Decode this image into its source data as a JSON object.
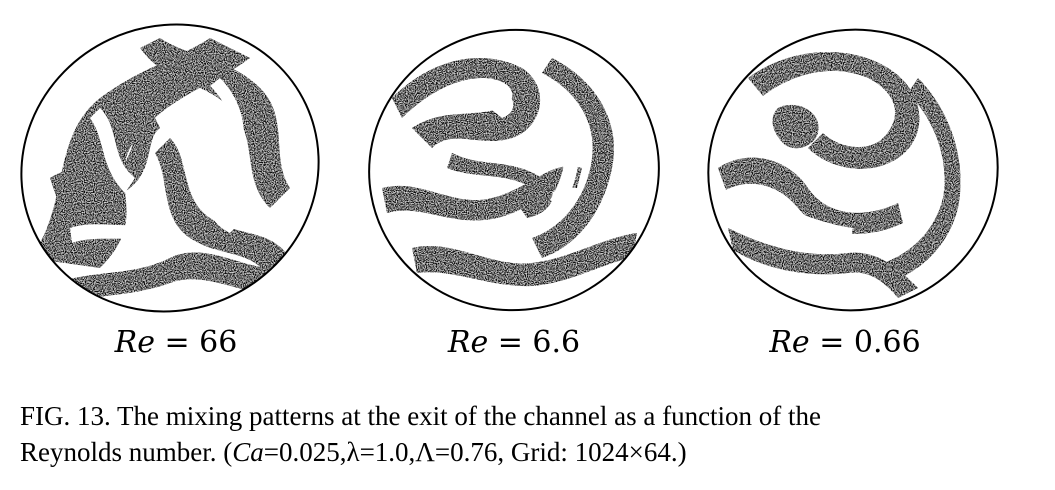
{
  "panels": [
    {
      "label_var": "Re",
      "label_rest": " = 66"
    },
    {
      "label_var": "Re",
      "label_rest": " = 6.6"
    },
    {
      "label_var": "Re",
      "label_rest": " = 0.66"
    }
  ],
  "caption": {
    "line1": "FIG. 13. The mixing patterns at the exit of the channel as a function of the",
    "line2_a": "Reynolds number. (",
    "line2_ca": "Ca",
    "line2_b": "=0.025,λ=1.0,Λ=0.76, Grid: 1024×64.)"
  }
}
